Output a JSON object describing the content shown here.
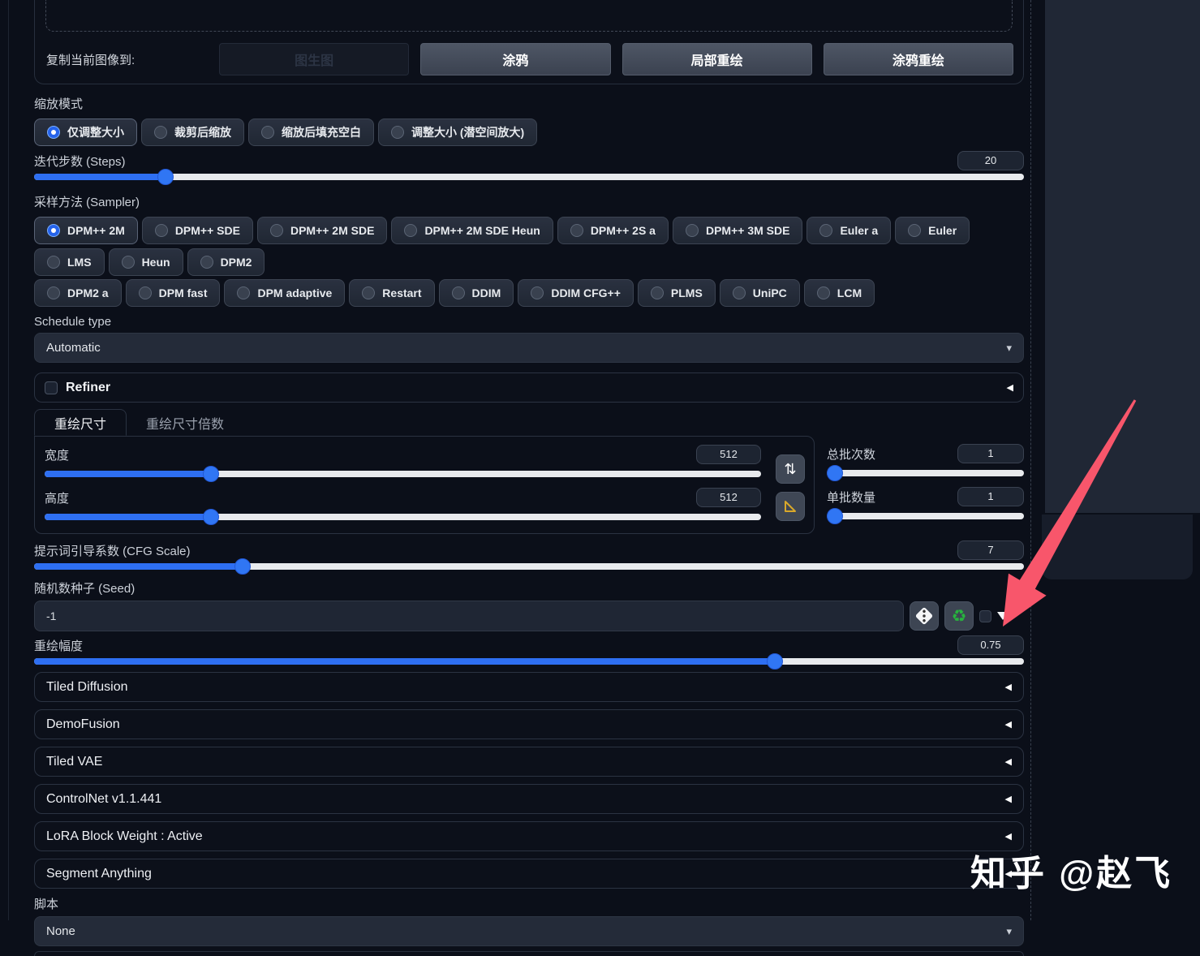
{
  "colors": {
    "accent": "#2e6ff2",
    "track": "#e8eaed",
    "annotation_arrow": "#f8566b"
  },
  "copy_to": {
    "label": "复制当前图像到:",
    "buttons": [
      {
        "label": "图生图",
        "disabled": true
      },
      {
        "label": "涂鸦"
      },
      {
        "label": "局部重绘"
      },
      {
        "label": "涂鸦重绘"
      }
    ]
  },
  "resize_mode": {
    "label": "缩放模式",
    "options": [
      {
        "label": "仅调整大小",
        "selected": true
      },
      {
        "label": "裁剪后缩放"
      },
      {
        "label": "缩放后填充空白"
      },
      {
        "label": "调整大小 (潜空间放大)"
      }
    ]
  },
  "steps": {
    "label": "迭代步数 (Steps)",
    "value": "20",
    "percent": 13.3
  },
  "sampler": {
    "label": "采样方法 (Sampler)",
    "row1": [
      {
        "label": "DPM++ 2M",
        "selected": true
      },
      {
        "label": "DPM++ SDE"
      },
      {
        "label": "DPM++ 2M SDE"
      },
      {
        "label": "DPM++ 2M SDE Heun"
      },
      {
        "label": "DPM++ 2S a"
      },
      {
        "label": "DPM++ 3M SDE"
      },
      {
        "label": "Euler a"
      },
      {
        "label": "Euler"
      },
      {
        "label": "LMS"
      },
      {
        "label": "Heun"
      },
      {
        "label": "DPM2"
      }
    ],
    "row2": [
      {
        "label": "DPM2 a"
      },
      {
        "label": "DPM fast"
      },
      {
        "label": "DPM adaptive"
      },
      {
        "label": "Restart"
      },
      {
        "label": "DDIM"
      },
      {
        "label": "DDIM CFG++"
      },
      {
        "label": "PLMS"
      },
      {
        "label": "UniPC"
      },
      {
        "label": "LCM"
      }
    ]
  },
  "schedule": {
    "label": "Schedule type",
    "value": "Automatic"
  },
  "refiner": {
    "label": "Refiner",
    "checked": false
  },
  "size_tabs": [
    {
      "label": "重绘尺寸",
      "active": true
    },
    {
      "label": "重绘尺寸倍数"
    }
  ],
  "size": {
    "width": {
      "label": "宽度",
      "value": "512",
      "percent": 23.2
    },
    "height": {
      "label": "高度",
      "value": "512",
      "percent": 23.2
    }
  },
  "batch": {
    "count": {
      "label": "总批次数",
      "value": "1",
      "percent": 0
    },
    "size": {
      "label": "单批数量",
      "value": "1",
      "percent": 0
    }
  },
  "cfg": {
    "label": "提示词引导系数 (CFG Scale)",
    "value": "7",
    "percent": 21.1
  },
  "seed": {
    "label": "随机数种子 (Seed)",
    "value": "-1"
  },
  "denoise": {
    "label": "重绘幅度",
    "value": "0.75",
    "percent": 74.8
  },
  "accordions": [
    {
      "label": "Tiled Diffusion"
    },
    {
      "label": "DemoFusion"
    },
    {
      "label": "Tiled VAE"
    },
    {
      "label": "ControlNet v1.1.441"
    },
    {
      "label": "LoRA Block Weight : Active"
    },
    {
      "label": "Segment Anything"
    }
  ],
  "script": {
    "label": "脚本",
    "value": "None"
  },
  "watermark": "知乎 @赵飞",
  "icons": {
    "swap_dimensions": "⇅",
    "dropdown_caret": "▾",
    "accordion_collapsed": "◀",
    "seed_reuse": "♻"
  }
}
